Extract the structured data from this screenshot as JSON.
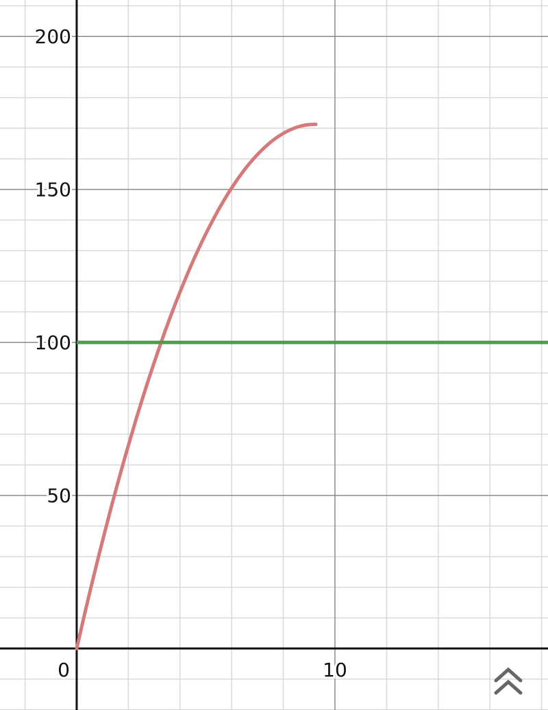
{
  "chart_data": {
    "type": "line",
    "xlim": [
      -2.97,
      18.25
    ],
    "ylim": [
      -20.1,
      211.9
    ],
    "grid": true,
    "major_x_step": 10,
    "major_y_step": 50,
    "minor_x_step": 2,
    "minor_y_step": 10,
    "x_tick_labels": [
      "0",
      "10"
    ],
    "y_tick_labels": [
      "50",
      "100",
      "150",
      "200"
    ],
    "series": [
      {
        "kind": "curve",
        "color": "#d47a7a",
        "x_range": [
          0,
          9.26
        ],
        "formula_coeffs": {
          "a": 37.2,
          "b": -2.02
        },
        "points": [
          [
            0,
            0
          ],
          [
            1,
            35.2
          ],
          [
            2,
            66.3
          ],
          [
            3,
            93.4
          ],
          [
            3.3,
            100
          ],
          [
            4,
            116.5
          ],
          [
            5,
            135.5
          ],
          [
            6,
            150.5
          ],
          [
            7,
            161.4
          ],
          [
            8,
            168.2
          ],
          [
            9,
            171.2
          ],
          [
            9.26,
            171.2
          ]
        ]
      },
      {
        "kind": "horizontal-line",
        "color": "#4f9a4f",
        "y": 100
      }
    ]
  },
  "ui": {
    "collapse_icon": "double-chevron-up-icon"
  }
}
